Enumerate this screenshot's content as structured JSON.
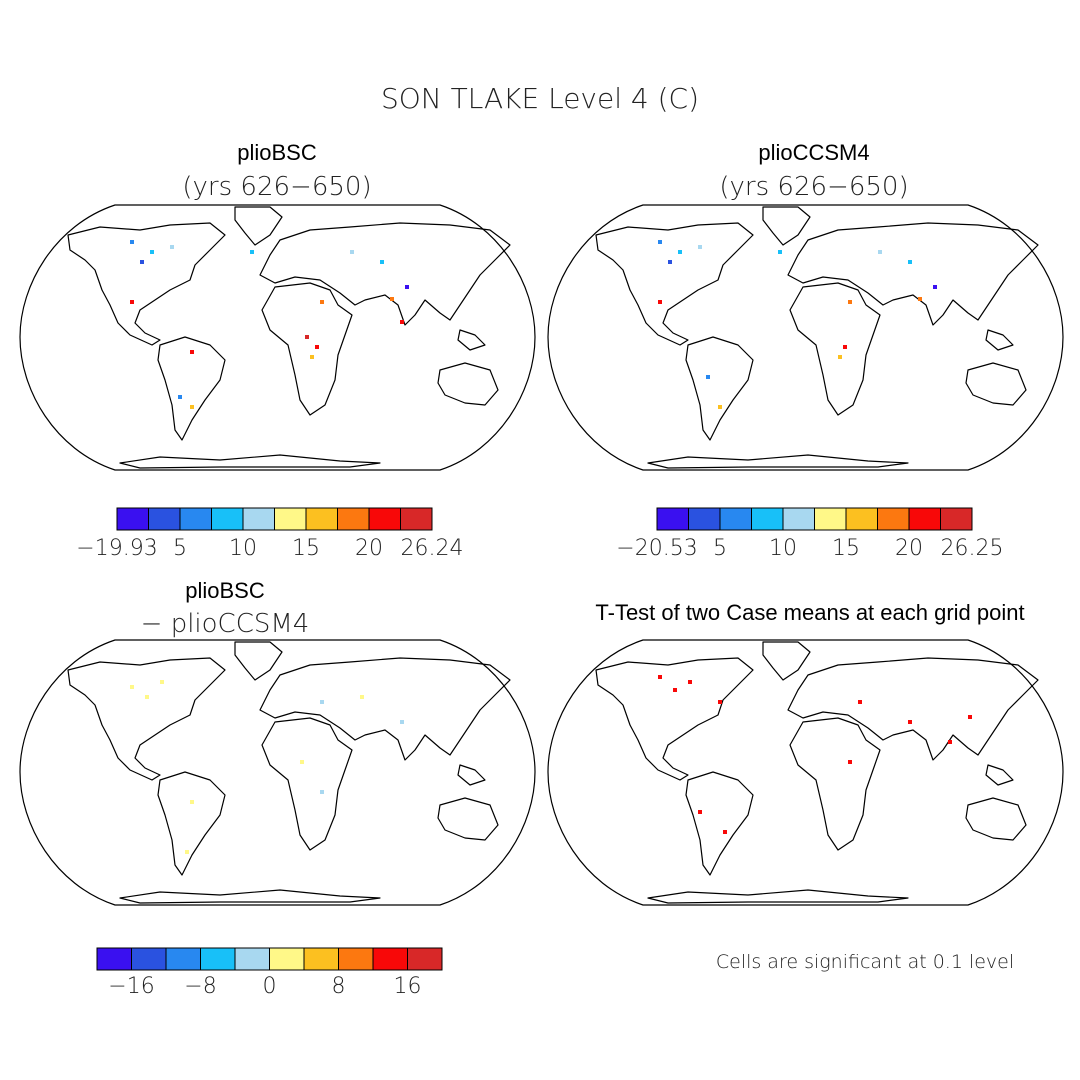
{
  "title": "SON TLAKE Level 4 (C)",
  "panels": [
    {
      "title": "plioBSC",
      "subtitle": "(yrs 626−650)"
    },
    {
      "title": "plioCCSM4",
      "subtitle": "(yrs 626−650)"
    },
    {
      "title": "plioBSC",
      "subtitle": "− plioCCSM4"
    },
    {
      "title": "T-Test of two Case means at each grid point"
    }
  ],
  "colorbars": [
    {
      "colors": [
        "#3a10f0",
        "#2a52e0",
        "#2888f0",
        "#18c0f8",
        "#a8d8f0",
        "#fff888",
        "#fcc020",
        "#fc7810",
        "#f80808",
        "#d82828"
      ],
      "labels": [
        "−19.93",
        "5",
        "10",
        "15",
        "20",
        "26.24"
      ]
    },
    {
      "colors": [
        "#3a10f0",
        "#2a52e0",
        "#2888f0",
        "#18c0f8",
        "#a8d8f0",
        "#fff888",
        "#fcc020",
        "#fc7810",
        "#f80808",
        "#d82828"
      ],
      "labels": [
        "−20.53",
        "5",
        "10",
        "15",
        "20",
        "26.25"
      ]
    },
    {
      "colors": [
        "#3a10f0",
        "#2a52e0",
        "#2888f0",
        "#18c0f8",
        "#a8d8f0",
        "#fff888",
        "#fcc020",
        "#fc7810",
        "#f80808",
        "#d82828"
      ],
      "labels": [
        "−16",
        "−8",
        "0",
        "8",
        "16"
      ]
    }
  ],
  "note": "Cells are significant at 0.1 level"
}
